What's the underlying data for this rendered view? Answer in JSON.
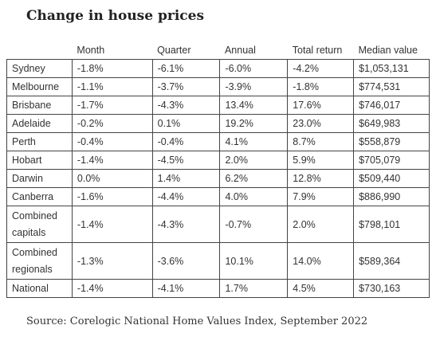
{
  "chart_data": {
    "type": "table",
    "title": "Change in house prices",
    "source": "Source: Corelogic National Home Values Index, September 2022",
    "columns": [
      "",
      "Month",
      "Quarter",
      "Annual",
      "Total return",
      "Median value"
    ],
    "rows": [
      {
        "region": "Sydney",
        "month": "-1.8%",
        "quarter": "-6.1%",
        "annual": "-6.0%",
        "total_return": "-4.2%",
        "median_value": "$1,053,131"
      },
      {
        "region": "Melbourne",
        "month": "-1.1%",
        "quarter": "-3.7%",
        "annual": "-3.9%",
        "total_return": "-1.8%",
        "median_value": "$774,531"
      },
      {
        "region": "Brisbane",
        "month": "-1.7%",
        "quarter": "-4.3%",
        "annual": "13.4%",
        "total_return": "17.6%",
        "median_value": "$746,017"
      },
      {
        "region": "Adelaide",
        "month": "-0.2%",
        "quarter": "0.1%",
        "annual": "19.2%",
        "total_return": "23.0%",
        "median_value": "$649,983"
      },
      {
        "region": "Perth",
        "month": "-0.4%",
        "quarter": "-0.4%",
        "annual": "4.1%",
        "total_return": "8.7%",
        "median_value": "$558,879"
      },
      {
        "region": "Hobart",
        "month": "-1.4%",
        "quarter": "-4.5%",
        "annual": "2.0%",
        "total_return": "5.9%",
        "median_value": "$705,079"
      },
      {
        "region": "Darwin",
        "month": "0.0%",
        "quarter": "1.4%",
        "annual": "6.2%",
        "total_return": "12.8%",
        "median_value": "$509,440"
      },
      {
        "region": "Canberra",
        "month": "-1.6%",
        "quarter": "-4.4%",
        "annual": "4.0%",
        "total_return": "7.9%",
        "median_value": "$886,990"
      },
      {
        "region": "Combined capitals",
        "month": "-1.4%",
        "quarter": "-4.3%",
        "annual": "-0.7%",
        "total_return": "2.0%",
        "median_value": "$798,101"
      },
      {
        "region": "Combined regionals",
        "month": "-1.3%",
        "quarter": "-3.6%",
        "annual": "10.1%",
        "total_return": "14.0%",
        "median_value": "$589,364"
      },
      {
        "region": "National",
        "month": "-1.4%",
        "quarter": "-4.1%",
        "annual": "1.7%",
        "total_return": "4.5%",
        "median_value": "$730,163"
      }
    ]
  }
}
